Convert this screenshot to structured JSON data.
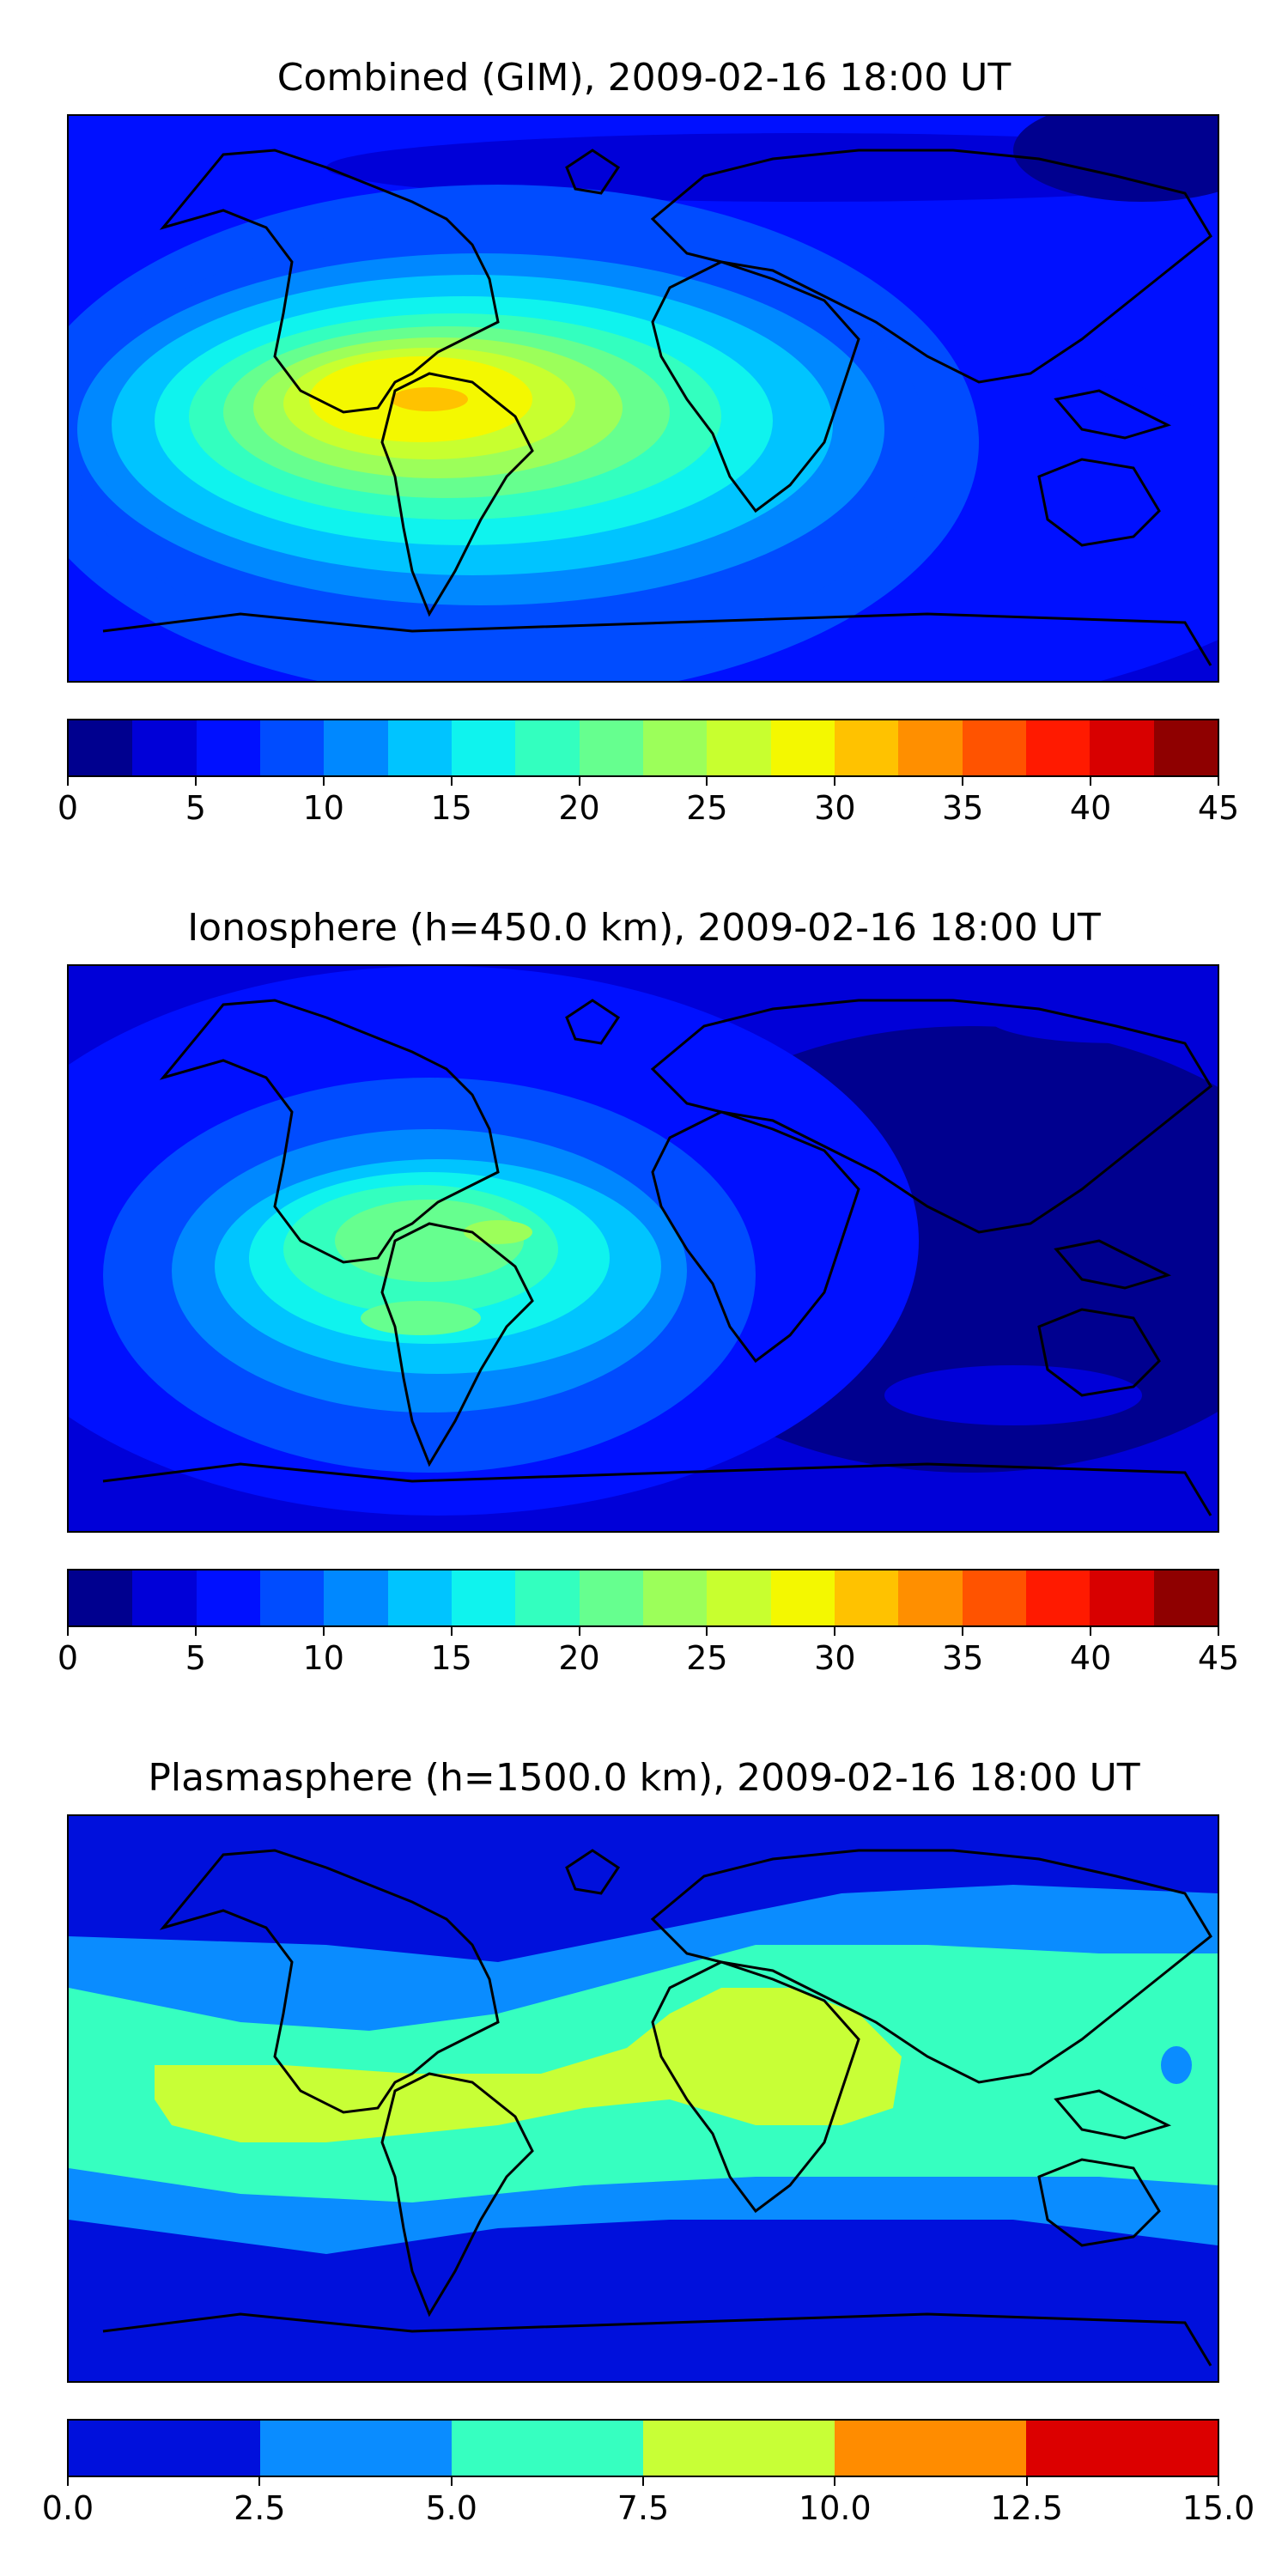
{
  "panels": [
    {
      "title": "Combined (GIM), 2009-02-16 18:00 UT",
      "colorbar": {
        "colors": [
          "#00008f",
          "#0000d8",
          "#0010ff",
          "#004cff",
          "#0088ff",
          "#00c4ff",
          "#0ff3ee",
          "#33ffbf",
          "#66ff8f",
          "#9cff5a",
          "#c8ff2f",
          "#f4f800",
          "#ffc200",
          "#ff8f00",
          "#ff5300",
          "#ff1a00",
          "#d80000",
          "#8f0000"
        ],
        "ticks": [
          "0",
          "5",
          "10",
          "15",
          "20",
          "25",
          "30",
          "35",
          "40",
          "45"
        ]
      }
    },
    {
      "title": "Ionosphere  (h=450.0 km), 2009-02-16 18:00 UT",
      "colorbar": {
        "colors": [
          "#00008f",
          "#0000d8",
          "#0010ff",
          "#004cff",
          "#0088ff",
          "#00c4ff",
          "#0ff3ee",
          "#33ffbf",
          "#66ff8f",
          "#9cff5a",
          "#c8ff2f",
          "#f4f800",
          "#ffc200",
          "#ff8f00",
          "#ff5300",
          "#ff1a00",
          "#d80000",
          "#8f0000"
        ],
        "ticks": [
          "0",
          "5",
          "10",
          "15",
          "20",
          "25",
          "30",
          "35",
          "40",
          "45"
        ]
      }
    },
    {
      "title": "Plasmasphere (h=1500.0 km), 2009-02-16 18:00 UT",
      "colorbar": {
        "colors": [
          "#0010dc",
          "#0a8cff",
          "#36ffc0",
          "#c8ff36",
          "#ff8c00",
          "#dc0000"
        ],
        "ticks": [
          "0.0",
          "2.5",
          "5.0",
          "7.5",
          "10.0",
          "12.5",
          "15.0"
        ]
      }
    }
  ]
}
